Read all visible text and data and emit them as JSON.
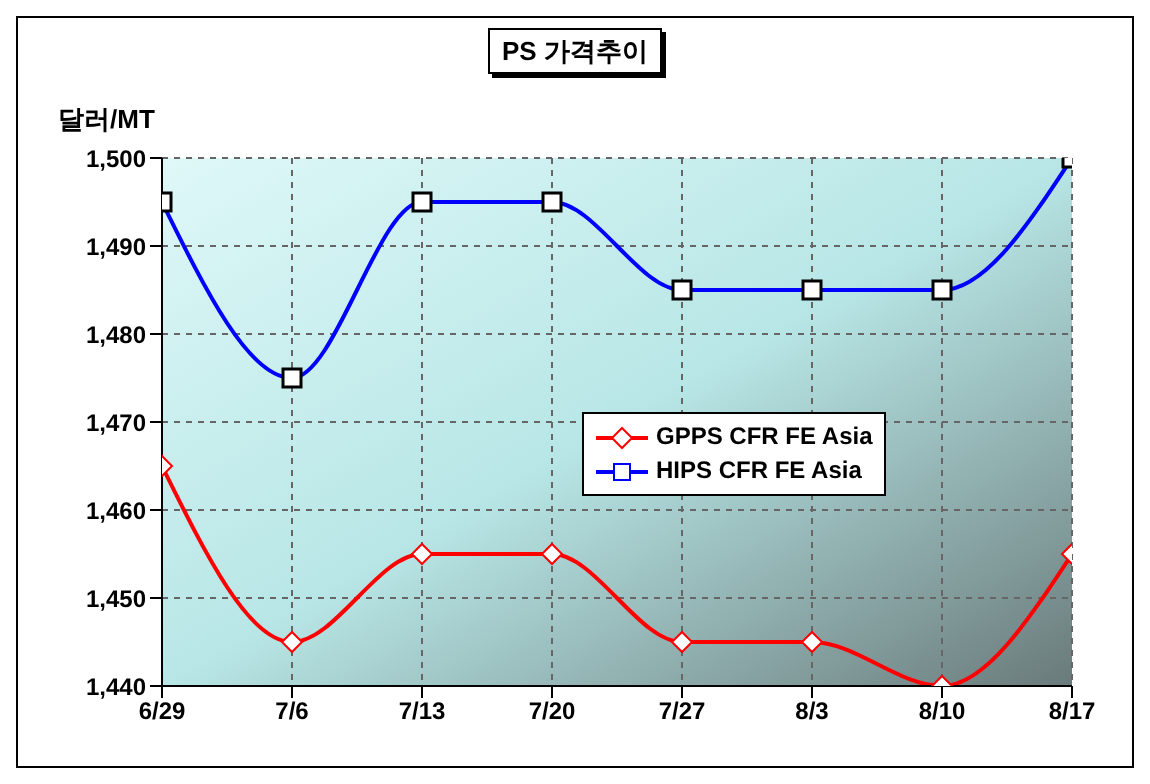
{
  "chart_data": {
    "type": "line",
    "title": "PS 가격추이",
    "ylabel": "달러/MT",
    "categories": [
      "6/29",
      "7/6",
      "7/13",
      "7/20",
      "7/27",
      "8/3",
      "8/10",
      "8/17"
    ],
    "series": [
      {
        "name": "GPPS CFR FE Asia",
        "color": "#ff0000",
        "marker": "diamond",
        "values": [
          1465,
          1445,
          1455,
          1455,
          1445,
          1445,
          1440,
          1455
        ]
      },
      {
        "name": "HIPS CFR FE Asia",
        "color": "#0000ff",
        "marker": "square",
        "values": [
          1495,
          1475,
          1495,
          1495,
          1485,
          1485,
          1485,
          1500
        ]
      }
    ],
    "ylim": [
      1440,
      1500
    ],
    "yticks": [
      {
        "value": 1440,
        "label": "1,440"
      },
      {
        "value": 1450,
        "label": "1,450"
      },
      {
        "value": 1460,
        "label": "1,460"
      },
      {
        "value": 1470,
        "label": "1,470"
      },
      {
        "value": 1480,
        "label": "1,480"
      },
      {
        "value": 1490,
        "label": "1,490"
      },
      {
        "value": 1500,
        "label": "1,500"
      }
    ],
    "grid": true,
    "legend": "center",
    "line_style": "solid"
  }
}
